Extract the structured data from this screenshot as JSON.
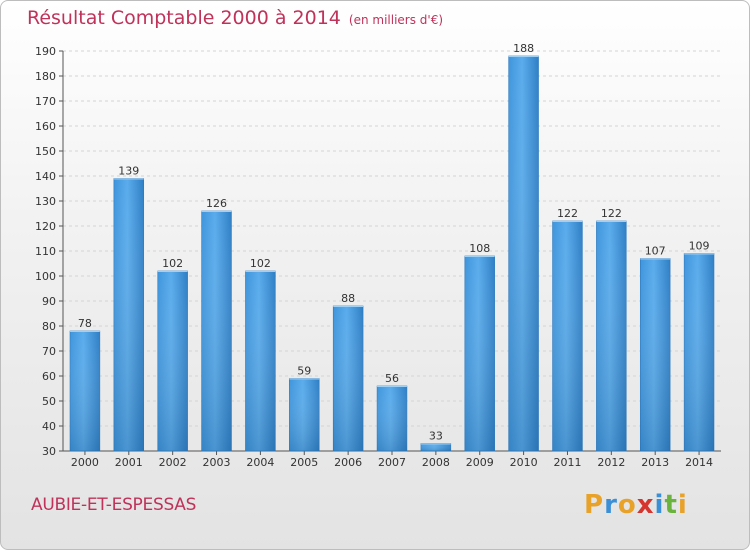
{
  "chart_data": {
    "type": "bar",
    "title": "Résultat Comptable 2000 à 2014",
    "subtitle": "(en milliers d'€)",
    "categories": [
      "2000",
      "2001",
      "2002",
      "2003",
      "2004",
      "2005",
      "2006",
      "2007",
      "2008",
      "2009",
      "2010",
      "2011",
      "2012",
      "2013",
      "2014"
    ],
    "values": [
      78,
      139,
      102,
      126,
      102,
      59,
      88,
      56,
      33,
      108,
      188,
      122,
      122,
      107,
      109
    ],
    "ylim": [
      30,
      190
    ],
    "yticks": [
      30,
      40,
      50,
      60,
      70,
      80,
      90,
      100,
      110,
      120,
      130,
      140,
      150,
      160,
      170,
      180,
      190
    ],
    "xlabel": "",
    "ylabel": "",
    "grid": true,
    "bar_color": "#3a8fd6"
  },
  "commune": "AUBIE-ET-ESPESSAS",
  "logo": {
    "letters": [
      "P",
      "r",
      "o",
      "x",
      "i",
      "t",
      "i"
    ],
    "colors": [
      "#e8a22a",
      "#3a8fd6",
      "#e8a22a",
      "#d6342f",
      "#3a8fd6",
      "#6ab33c",
      "#e8a22a"
    ]
  }
}
